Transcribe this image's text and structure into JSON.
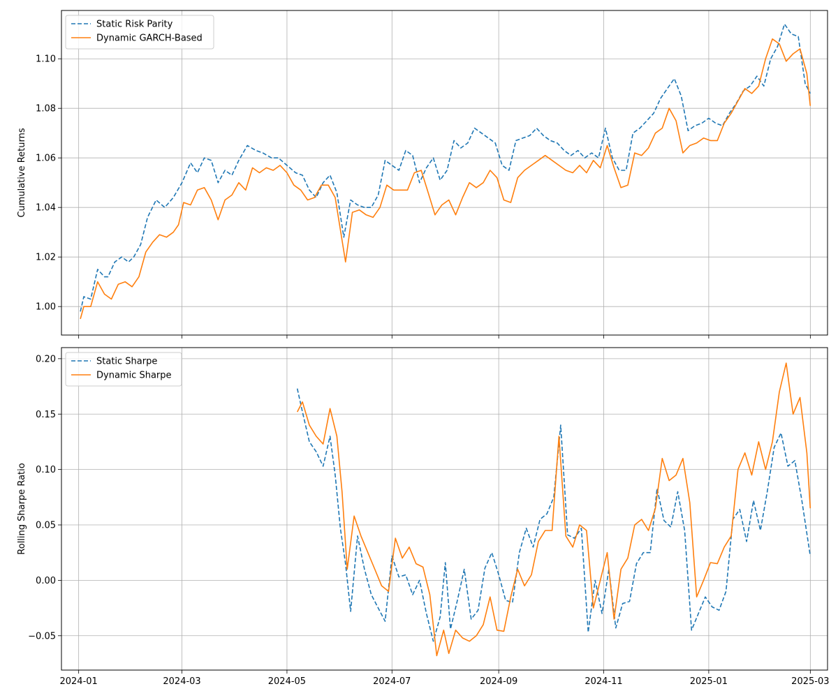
{
  "colors": {
    "static": "#1f77b4",
    "dynamic": "#ff7f0e",
    "grid": "#b0b0b0"
  },
  "chart_data": [
    {
      "type": "line",
      "title": "",
      "xlabel": "",
      "ylabel": "Cumulative Returns",
      "xlim": [
        "2023-12-22",
        "2025-03-11"
      ],
      "ylim": [
        0.9885,
        1.1195
      ],
      "grid": true,
      "legend": "top-left",
      "yticks": [
        1.0,
        1.02,
        1.04,
        1.06,
        1.08,
        1.1
      ],
      "ytick_labels": [
        "1.00",
        "1.02",
        "1.04",
        "1.06",
        "1.08",
        "1.10"
      ],
      "series": [
        {
          "name": "Static Risk Parity",
          "style": "dashed",
          "x": [
            "2024-01-02",
            "2024-01-04",
            "2024-01-08",
            "2024-01-12",
            "2024-01-16",
            "2024-01-18",
            "2024-01-22",
            "2024-01-26",
            "2024-01-30",
            "2024-02-02",
            "2024-02-06",
            "2024-02-10",
            "2024-02-15",
            "2024-02-20",
            "2024-02-25",
            "2024-03-01",
            "2024-03-06",
            "2024-03-10",
            "2024-03-14",
            "2024-03-18",
            "2024-03-22",
            "2024-03-26",
            "2024-03-30",
            "2024-04-03",
            "2024-04-08",
            "2024-04-13",
            "2024-04-17",
            "2024-04-22",
            "2024-04-26",
            "2024-05-01",
            "2024-05-06",
            "2024-05-10",
            "2024-05-14",
            "2024-05-18",
            "2024-05-22",
            "2024-05-26",
            "2024-05-30",
            "2024-06-03",
            "2024-06-07",
            "2024-06-11",
            "2024-06-15",
            "2024-06-19",
            "2024-06-23",
            "2024-06-27",
            "2024-07-01",
            "2024-07-05",
            "2024-07-09",
            "2024-07-13",
            "2024-07-17",
            "2024-07-21",
            "2024-07-25",
            "2024-07-29",
            "2024-08-02",
            "2024-08-06",
            "2024-08-10",
            "2024-08-14",
            "2024-08-18",
            "2024-08-22",
            "2024-08-26",
            "2024-08-30",
            "2024-09-03",
            "2024-09-07",
            "2024-09-11",
            "2024-09-15",
            "2024-09-19",
            "2024-09-23",
            "2024-09-27",
            "2024-10-01",
            "2024-10-05",
            "2024-10-09",
            "2024-10-13",
            "2024-10-17",
            "2024-10-21",
            "2024-10-25",
            "2024-10-29",
            "2024-11-02",
            "2024-11-06",
            "2024-11-10",
            "2024-11-14",
            "2024-11-18",
            "2024-11-22",
            "2024-11-26",
            "2024-11-30",
            "2024-12-04",
            "2024-12-08",
            "2024-12-12",
            "2024-12-16",
            "2024-12-20",
            "2024-12-24",
            "2024-12-28",
            "2025-01-01",
            "2025-01-05",
            "2025-01-09",
            "2025-01-13",
            "2025-01-17",
            "2025-01-21",
            "2025-01-25",
            "2025-01-29",
            "2025-02-02",
            "2025-02-06",
            "2025-02-10",
            "2025-02-14",
            "2025-02-18",
            "2025-02-22",
            "2025-02-26",
            "2025-03-01"
          ],
          "y": [
            0.998,
            1.004,
            1.003,
            1.015,
            1.012,
            1.012,
            1.018,
            1.02,
            1.018,
            1.02,
            1.025,
            1.036,
            1.043,
            1.04,
            1.044,
            1.05,
            1.058,
            1.054,
            1.06,
            1.059,
            1.05,
            1.055,
            1.053,
            1.059,
            1.065,
            1.063,
            1.062,
            1.06,
            1.06,
            1.057,
            1.054,
            1.053,
            1.047,
            1.044,
            1.05,
            1.053,
            1.046,
            1.028,
            1.043,
            1.041,
            1.04,
            1.04,
            1.045,
            1.059,
            1.057,
            1.055,
            1.063,
            1.061,
            1.05,
            1.056,
            1.06,
            1.051,
            1.055,
            1.067,
            1.064,
            1.066,
            1.072,
            1.07,
            1.068,
            1.066,
            1.057,
            1.055,
            1.067,
            1.068,
            1.069,
            1.072,
            1.069,
            1.067,
            1.066,
            1.063,
            1.061,
            1.063,
            1.06,
            1.062,
            1.06,
            1.072,
            1.06,
            1.055,
            1.055,
            1.07,
            1.072,
            1.075,
            1.078,
            1.084,
            1.088,
            1.092,
            1.085,
            1.071,
            1.073,
            1.074,
            1.076,
            1.074,
            1.073,
            1.078,
            1.082,
            1.087,
            1.089,
            1.093,
            1.089,
            1.1,
            1.105,
            1.114,
            1.11,
            1.109,
            1.09,
            1.086
          ]
        },
        {
          "name": "Dynamic GARCH-Based",
          "style": "solid",
          "x": [
            "2024-01-02",
            "2024-01-04",
            "2024-01-08",
            "2024-01-12",
            "2024-01-16",
            "2024-01-20",
            "2024-01-24",
            "2024-01-28",
            "2024-02-01",
            "2024-02-05",
            "2024-02-09",
            "2024-02-13",
            "2024-02-17",
            "2024-02-21",
            "2024-02-25",
            "2024-02-28",
            "2024-03-02",
            "2024-03-06",
            "2024-03-10",
            "2024-03-14",
            "2024-03-18",
            "2024-03-22",
            "2024-03-26",
            "2024-03-30",
            "2024-04-03",
            "2024-04-07",
            "2024-04-11",
            "2024-04-15",
            "2024-04-19",
            "2024-04-23",
            "2024-04-27",
            "2024-05-01",
            "2024-05-05",
            "2024-05-09",
            "2024-05-13",
            "2024-05-17",
            "2024-05-21",
            "2024-05-25",
            "2024-05-29",
            "2024-06-01",
            "2024-06-04",
            "2024-06-08",
            "2024-06-12",
            "2024-06-16",
            "2024-06-20",
            "2024-06-24",
            "2024-06-28",
            "2024-07-02",
            "2024-07-06",
            "2024-07-10",
            "2024-07-14",
            "2024-07-18",
            "2024-07-22",
            "2024-07-26",
            "2024-07-30",
            "2024-08-03",
            "2024-08-07",
            "2024-08-11",
            "2024-08-15",
            "2024-08-19",
            "2024-08-23",
            "2024-08-27",
            "2024-08-31",
            "2024-09-04",
            "2024-09-08",
            "2024-09-12",
            "2024-09-16",
            "2024-09-20",
            "2024-09-24",
            "2024-09-28",
            "2024-10-02",
            "2024-10-06",
            "2024-10-10",
            "2024-10-14",
            "2024-10-18",
            "2024-10-22",
            "2024-10-26",
            "2024-10-30",
            "2024-11-03",
            "2024-11-07",
            "2024-11-11",
            "2024-11-15",
            "2024-11-19",
            "2024-11-23",
            "2024-11-27",
            "2024-12-01",
            "2024-12-05",
            "2024-12-09",
            "2024-12-13",
            "2024-12-17",
            "2024-12-21",
            "2024-12-25",
            "2024-12-29",
            "2025-01-02",
            "2025-01-06",
            "2025-01-10",
            "2025-01-14",
            "2025-01-18",
            "2025-01-22",
            "2025-01-26",
            "2025-01-30",
            "2025-02-03",
            "2025-02-07",
            "2025-02-11",
            "2025-02-15",
            "2025-02-19",
            "2025-02-23",
            "2025-02-27",
            "2025-03-01"
          ],
          "y": [
            0.995,
            1.0,
            1.0,
            1.01,
            1.005,
            1.003,
            1.009,
            1.01,
            1.008,
            1.012,
            1.022,
            1.026,
            1.029,
            1.028,
            1.03,
            1.033,
            1.042,
            1.041,
            1.047,
            1.048,
            1.043,
            1.035,
            1.043,
            1.045,
            1.05,
            1.047,
            1.056,
            1.054,
            1.056,
            1.055,
            1.057,
            1.054,
            1.049,
            1.047,
            1.043,
            1.044,
            1.049,
            1.049,
            1.044,
            1.031,
            1.018,
            1.038,
            1.039,
            1.037,
            1.036,
            1.04,
            1.049,
            1.047,
            1.047,
            1.047,
            1.054,
            1.055,
            1.046,
            1.037,
            1.041,
            1.043,
            1.037,
            1.044,
            1.05,
            1.048,
            1.05,
            1.055,
            1.052,
            1.043,
            1.042,
            1.052,
            1.055,
            1.057,
            1.059,
            1.061,
            1.059,
            1.057,
            1.055,
            1.054,
            1.057,
            1.054,
            1.059,
            1.056,
            1.065,
            1.056,
            1.048,
            1.049,
            1.062,
            1.061,
            1.064,
            1.07,
            1.072,
            1.08,
            1.075,
            1.062,
            1.065,
            1.066,
            1.068,
            1.067,
            1.067,
            1.074,
            1.078,
            1.083,
            1.088,
            1.086,
            1.089,
            1.1,
            1.108,
            1.106,
            1.099,
            1.102,
            1.104,
            1.094,
            1.081
          ]
        }
      ]
    },
    {
      "type": "line",
      "title": "",
      "xlabel": "",
      "ylabel": "Rolling Sharpe Ratio",
      "xlim": [
        "2023-12-22",
        "2025-03-11"
      ],
      "ylim": [
        -0.081,
        0.21
      ],
      "grid": true,
      "legend": "top-left",
      "yticks": [
        -0.05,
        0.0,
        0.05,
        0.1,
        0.15,
        0.2
      ],
      "ytick_labels": [
        "−0.05",
        "0.00",
        "0.05",
        "0.10",
        "0.15",
        "0.20"
      ],
      "xticks": [
        "2024-01-01",
        "2024-03-01",
        "2024-05-01",
        "2024-07-01",
        "2024-09-01",
        "2024-11-01",
        "2025-01-01",
        "2025-03-01"
      ],
      "xtick_labels": [
        "2024-01",
        "2024-03",
        "2024-05",
        "2024-07",
        "2024-09",
        "2024-11",
        "2025-01",
        "2025-03"
      ],
      "series": [
        {
          "name": "Static Sharpe",
          "style": "dashed",
          "x": [
            "2024-05-07",
            "2024-05-10",
            "2024-05-14",
            "2024-05-18",
            "2024-05-22",
            "2024-05-26",
            "2024-05-29",
            "2024-06-01",
            "2024-06-04",
            "2024-06-07",
            "2024-06-11",
            "2024-06-15",
            "2024-06-19",
            "2024-06-23",
            "2024-06-27",
            "2024-07-01",
            "2024-07-05",
            "2024-07-09",
            "2024-07-13",
            "2024-07-17",
            "2024-07-21",
            "2024-07-25",
            "2024-07-29",
            "2024-08-01",
            "2024-08-04",
            "2024-08-08",
            "2024-08-12",
            "2024-08-16",
            "2024-08-20",
            "2024-08-24",
            "2024-08-28",
            "2024-09-01",
            "2024-09-05",
            "2024-09-09",
            "2024-09-13",
            "2024-09-17",
            "2024-09-21",
            "2024-09-25",
            "2024-09-29",
            "2024-10-03",
            "2024-10-07",
            "2024-10-11",
            "2024-10-15",
            "2024-10-19",
            "2024-10-23",
            "2024-10-27",
            "2024-10-31",
            "2024-11-04",
            "2024-11-08",
            "2024-11-12",
            "2024-11-16",
            "2024-11-20",
            "2024-11-24",
            "2024-11-28",
            "2024-12-02",
            "2024-12-06",
            "2024-12-10",
            "2024-12-14",
            "2024-12-18",
            "2024-12-22",
            "2024-12-26",
            "2024-12-30",
            "2025-01-03",
            "2025-01-07",
            "2025-01-11",
            "2025-01-15",
            "2025-01-19",
            "2025-01-23",
            "2025-01-27",
            "2025-01-31",
            "2025-02-04",
            "2025-02-08",
            "2025-02-12",
            "2025-02-16",
            "2025-02-20",
            "2025-02-24",
            "2025-03-01"
          ],
          "y": [
            0.173,
            0.152,
            0.125,
            0.116,
            0.103,
            0.13,
            0.095,
            0.047,
            0.015,
            -0.028,
            0.04,
            0.01,
            -0.013,
            -0.025,
            -0.037,
            0.022,
            0.003,
            0.005,
            -0.013,
            0.0,
            -0.03,
            -0.055,
            -0.033,
            0.016,
            -0.044,
            -0.018,
            0.01,
            -0.035,
            -0.027,
            0.011,
            0.025,
            0.005,
            -0.018,
            -0.02,
            0.025,
            0.047,
            0.03,
            0.055,
            0.06,
            0.075,
            0.14,
            0.041,
            0.038,
            0.047,
            -0.047,
            0.0,
            -0.03,
            0.01,
            -0.043,
            -0.021,
            -0.019,
            0.015,
            0.025,
            0.025,
            0.083,
            0.054,
            0.048,
            0.08,
            0.045,
            -0.045,
            -0.03,
            -0.015,
            -0.024,
            -0.027,
            -0.01,
            0.055,
            0.064,
            0.035,
            0.072,
            0.045,
            0.08,
            0.12,
            0.133,
            0.103,
            0.108,
            0.073,
            0.022
          ]
        },
        {
          "name": "Dynamic Sharpe",
          "style": "solid",
          "x": [
            "2024-05-07",
            "2024-05-10",
            "2024-05-14",
            "2024-05-18",
            "2024-05-22",
            "2024-05-26",
            "2024-05-30",
            "2024-06-02",
            "2024-06-05",
            "2024-06-09",
            "2024-06-13",
            "2024-06-17",
            "2024-06-21",
            "2024-06-25",
            "2024-06-29",
            "2024-07-03",
            "2024-07-07",
            "2024-07-11",
            "2024-07-15",
            "2024-07-19",
            "2024-07-23",
            "2024-07-27",
            "2024-07-31",
            "2024-08-03",
            "2024-08-07",
            "2024-08-11",
            "2024-08-15",
            "2024-08-19",
            "2024-08-23",
            "2024-08-27",
            "2024-08-31",
            "2024-09-04",
            "2024-09-08",
            "2024-09-12",
            "2024-09-16",
            "2024-09-20",
            "2024-09-24",
            "2024-09-28",
            "2024-10-02",
            "2024-10-06",
            "2024-10-10",
            "2024-10-14",
            "2024-10-18",
            "2024-10-22",
            "2024-10-26",
            "2024-10-30",
            "2024-11-03",
            "2024-11-07",
            "2024-11-11",
            "2024-11-15",
            "2024-11-19",
            "2024-11-23",
            "2024-11-27",
            "2024-12-01",
            "2024-12-05",
            "2024-12-09",
            "2024-12-13",
            "2024-12-17",
            "2024-12-21",
            "2024-12-25",
            "2024-12-29",
            "2025-01-02",
            "2025-01-06",
            "2025-01-10",
            "2025-01-14",
            "2025-01-18",
            "2025-01-22",
            "2025-01-26",
            "2025-01-30",
            "2025-02-03",
            "2025-02-07",
            "2025-02-11",
            "2025-02-15",
            "2025-02-19",
            "2025-02-23",
            "2025-02-27",
            "2025-03-01"
          ],
          "y": [
            0.152,
            0.161,
            0.14,
            0.13,
            0.123,
            0.155,
            0.13,
            0.08,
            0.01,
            0.058,
            0.04,
            0.025,
            0.01,
            -0.005,
            -0.01,
            0.038,
            0.02,
            0.03,
            0.015,
            0.012,
            -0.013,
            -0.068,
            -0.045,
            -0.066,
            -0.045,
            -0.052,
            -0.055,
            -0.05,
            -0.04,
            -0.015,
            -0.045,
            -0.046,
            -0.015,
            0.01,
            -0.005,
            0.005,
            0.035,
            0.045,
            0.045,
            0.13,
            0.04,
            0.03,
            0.05,
            0.045,
            -0.025,
            0.0,
            0.025,
            -0.035,
            0.01,
            0.02,
            0.05,
            0.055,
            0.045,
            0.065,
            0.11,
            0.09,
            0.095,
            0.11,
            0.07,
            -0.015,
            0.0,
            0.016,
            0.015,
            0.03,
            0.04,
            0.1,
            0.115,
            0.095,
            0.125,
            0.1,
            0.125,
            0.17,
            0.196,
            0.15,
            0.165,
            0.115,
            0.065
          ]
        }
      ]
    }
  ]
}
